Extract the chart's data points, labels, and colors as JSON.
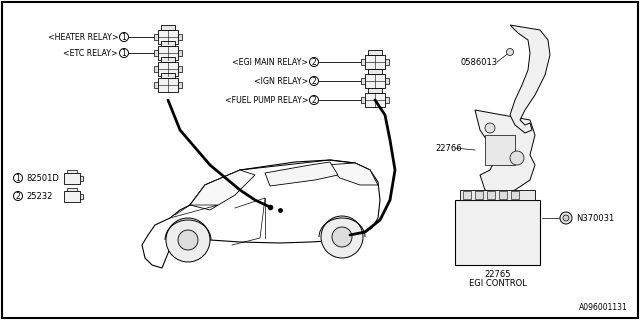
{
  "bg_color": "#ffffff",
  "fig_width": 6.4,
  "fig_height": 3.2,
  "dpi": 100,
  "diagram_number": "A096001131",
  "labels": {
    "heater_relay": "<HEATER RELAY>",
    "etc_relay": "<ETC RELAY>",
    "egi_main_relay": "<EGI MAIN RELAY>",
    "ign_relay": "<IGN RELAY>",
    "fuel_pump_relay": "<FUEL PUMP RELAY>",
    "part1": "82501D",
    "part2": "25232",
    "part0586013": "0586013",
    "part22766": "22766",
    "part22765": "22765",
    "partN370031": "N370031",
    "egi_control": "EGI CONTROL"
  }
}
